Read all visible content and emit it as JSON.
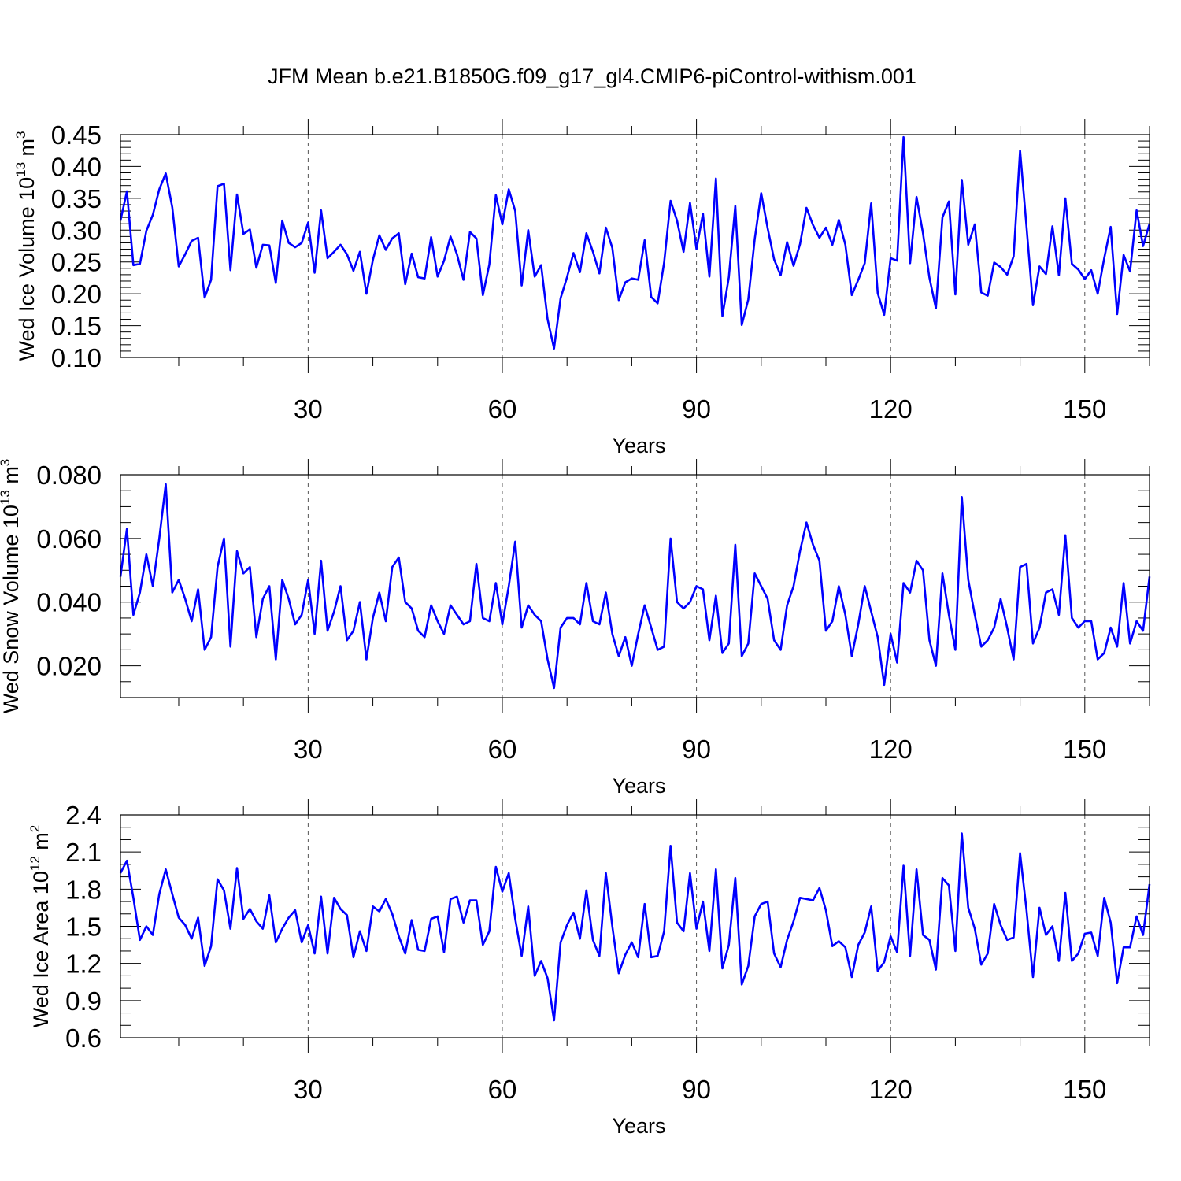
{
  "figure": {
    "title": "JFM Mean b.e21.B1850G.f09_g17_gl4.CMIP6-piControl-withism.001"
  },
  "chart_data": [
    {
      "type": "line",
      "ylabel": {
        "main": "Wed Ice Volume 10",
        "sup": "13",
        "unit": " m",
        "unit_sup": "3"
      },
      "xlabel": "Years",
      "xlim": [
        1,
        160
      ],
      "ylim": [
        0.1,
        0.45
      ],
      "yticks": [
        0.1,
        0.15,
        0.2,
        0.25,
        0.3,
        0.35,
        0.4,
        0.45
      ],
      "ytick_labels": [
        "0.10",
        "0.15",
        "0.20",
        "0.25",
        "0.30",
        "0.35",
        "0.40",
        "0.45"
      ],
      "yminor_step": 0.01,
      "xticks": [
        30,
        60,
        90,
        120,
        150
      ],
      "xtick_labels": [
        "30",
        "60",
        "90",
        "120",
        "150"
      ],
      "xminor_step": 10,
      "grid_x": true,
      "series": [
        {
          "name": "Wed Ice Volume",
          "color": "#0000ff",
          "values": [
            0.315,
            0.361,
            0.245,
            0.247,
            0.299,
            0.324,
            0.364,
            0.389,
            0.336,
            0.243,
            0.262,
            0.283,
            0.288,
            0.194,
            0.222,
            0.369,
            0.373,
            0.237,
            0.356,
            0.294,
            0.301,
            0.241,
            0.277,
            0.276,
            0.217,
            0.315,
            0.28,
            0.273,
            0.28,
            0.312,
            0.233,
            0.331,
            0.256,
            0.266,
            0.277,
            0.262,
            0.236,
            0.266,
            0.2,
            0.253,
            0.292,
            0.269,
            0.287,
            0.295,
            0.215,
            0.263,
            0.226,
            0.224,
            0.289,
            0.227,
            0.252,
            0.29,
            0.262,
            0.222,
            0.297,
            0.287,
            0.198,
            0.246,
            0.355,
            0.309,
            0.364,
            0.33,
            0.213,
            0.3,
            0.227,
            0.245,
            0.16,
            0.114,
            0.193,
            0.226,
            0.264,
            0.234,
            0.295,
            0.266,
            0.232,
            0.304,
            0.272,
            0.19,
            0.218,
            0.224,
            0.222,
            0.284,
            0.195,
            0.185,
            0.249,
            0.346,
            0.315,
            0.266,
            0.343,
            0.27,
            0.326,
            0.227,
            0.381,
            0.165,
            0.226,
            0.338,
            0.151,
            0.191,
            0.286,
            0.358,
            0.303,
            0.254,
            0.229,
            0.281,
            0.244,
            0.278,
            0.335,
            0.308,
            0.288,
            0.304,
            0.277,
            0.316,
            0.277,
            0.198,
            0.222,
            0.248,
            0.342,
            0.201,
            0.167,
            0.256,
            0.252,
            0.446,
            0.248,
            0.352,
            0.295,
            0.225,
            0.177,
            0.32,
            0.345,
            0.199,
            0.379,
            0.277,
            0.309,
            0.202,
            0.197,
            0.249,
            0.242,
            0.23,
            0.259,
            0.425,
            0.305,
            0.182,
            0.243,
            0.231,
            0.306,
            0.229,
            0.35,
            0.247,
            0.238,
            0.223,
            0.237,
            0.2,
            0.256,
            0.305,
            0.168,
            0.261,
            0.235,
            0.331,
            0.275,
            0.31
          ]
        }
      ]
    },
    {
      "type": "line",
      "ylabel": {
        "main": "Wed Snow Volume 10",
        "sup": "13",
        "unit": " m",
        "unit_sup": "3"
      },
      "xlabel": "Years",
      "xlim": [
        1,
        160
      ],
      "ylim": [
        0.01,
        0.08
      ],
      "yticks": [
        0.02,
        0.04,
        0.06,
        0.08
      ],
      "ytick_labels": [
        "0.020",
        "0.040",
        "0.060",
        "0.080"
      ],
      "yminor_step": 0.005,
      "xticks": [
        30,
        60,
        90,
        120,
        150
      ],
      "xtick_labels": [
        "30",
        "60",
        "90",
        "120",
        "150"
      ],
      "xminor_step": 10,
      "grid_x": true,
      "series": [
        {
          "name": "Wed Snow Volume",
          "color": "#0000ff",
          "values": [
            0.048,
            0.063,
            0.036,
            0.043,
            0.055,
            0.045,
            0.06,
            0.077,
            0.043,
            0.047,
            0.041,
            0.034,
            0.044,
            0.025,
            0.029,
            0.051,
            0.06,
            0.026,
            0.056,
            0.049,
            0.051,
            0.029,
            0.041,
            0.045,
            0.022,
            0.047,
            0.041,
            0.033,
            0.036,
            0.047,
            0.03,
            0.053,
            0.031,
            0.037,
            0.045,
            0.028,
            0.031,
            0.04,
            0.022,
            0.035,
            0.043,
            0.034,
            0.051,
            0.054,
            0.04,
            0.038,
            0.031,
            0.029,
            0.039,
            0.034,
            0.03,
            0.039,
            0.036,
            0.033,
            0.034,
            0.052,
            0.035,
            0.034,
            0.046,
            0.033,
            0.045,
            0.059,
            0.032,
            0.039,
            0.036,
            0.034,
            0.022,
            0.013,
            0.032,
            0.035,
            0.035,
            0.033,
            0.046,
            0.034,
            0.033,
            0.043,
            0.03,
            0.023,
            0.029,
            0.02,
            0.03,
            0.039,
            0.032,
            0.025,
            0.026,
            0.06,
            0.04,
            0.038,
            0.04,
            0.045,
            0.044,
            0.028,
            0.042,
            0.024,
            0.027,
            0.058,
            0.023,
            0.027,
            0.049,
            0.045,
            0.041,
            0.028,
            0.025,
            0.039,
            0.045,
            0.056,
            0.065,
            0.058,
            0.053,
            0.031,
            0.034,
            0.045,
            0.036,
            0.023,
            0.033,
            0.045,
            0.037,
            0.029,
            0.014,
            0.03,
            0.021,
            0.046,
            0.043,
            0.053,
            0.05,
            0.028,
            0.02,
            0.049,
            0.036,
            0.025,
            0.073,
            0.047,
            0.036,
            0.026,
            0.028,
            0.032,
            0.041,
            0.032,
            0.022,
            0.051,
            0.052,
            0.027,
            0.032,
            0.043,
            0.044,
            0.036,
            0.061,
            0.035,
            0.032,
            0.034,
            0.034,
            0.022,
            0.024,
            0.032,
            0.026,
            0.046,
            0.027,
            0.034,
            0.031,
            0.048
          ]
        }
      ]
    },
    {
      "type": "line",
      "ylabel": {
        "main": "Wed Ice Area 10",
        "sup": "12",
        "unit": " m",
        "unit_sup": "2"
      },
      "xlabel": "Years",
      "xlim": [
        1,
        160
      ],
      "ylim": [
        0.6,
        2.4
      ],
      "yticks": [
        0.6,
        0.9,
        1.2,
        1.5,
        1.8,
        2.1,
        2.4
      ],
      "ytick_labels": [
        "0.6",
        "0.9",
        "1.2",
        "1.5",
        "1.8",
        "2.1",
        "2.4"
      ],
      "yminor_step": 0.1,
      "xticks": [
        30,
        60,
        90,
        120,
        150
      ],
      "xtick_labels": [
        "30",
        "60",
        "90",
        "120",
        "150"
      ],
      "xminor_step": 10,
      "grid_x": true,
      "series": [
        {
          "name": "Wed Ice Area",
          "color": "#0000ff",
          "values": [
            1.93,
            2.03,
            1.73,
            1.39,
            1.5,
            1.43,
            1.76,
            1.96,
            1.76,
            1.57,
            1.51,
            1.4,
            1.57,
            1.18,
            1.34,
            1.88,
            1.79,
            1.48,
            1.97,
            1.56,
            1.64,
            1.54,
            1.48,
            1.75,
            1.37,
            1.48,
            1.57,
            1.63,
            1.37,
            1.51,
            1.28,
            1.74,
            1.28,
            1.73,
            1.64,
            1.59,
            1.25,
            1.46,
            1.3,
            1.66,
            1.62,
            1.72,
            1.6,
            1.42,
            1.28,
            1.55,
            1.31,
            1.3,
            1.56,
            1.58,
            1.29,
            1.72,
            1.74,
            1.53,
            1.71,
            1.71,
            1.35,
            1.46,
            1.98,
            1.78,
            1.93,
            1.56,
            1.26,
            1.66,
            1.1,
            1.22,
            1.08,
            0.74,
            1.37,
            1.51,
            1.61,
            1.4,
            1.79,
            1.39,
            1.26,
            1.93,
            1.5,
            1.12,
            1.27,
            1.37,
            1.25,
            1.68,
            1.25,
            1.26,
            1.46,
            2.15,
            1.53,
            1.46,
            1.93,
            1.48,
            1.7,
            1.3,
            1.96,
            1.16,
            1.35,
            1.89,
            1.03,
            1.18,
            1.58,
            1.68,
            1.7,
            1.28,
            1.17,
            1.39,
            1.54,
            1.73,
            1.72,
            1.71,
            1.81,
            1.63,
            1.34,
            1.38,
            1.33,
            1.09,
            1.35,
            1.45,
            1.66,
            1.14,
            1.21,
            1.42,
            1.29,
            1.99,
            1.26,
            1.96,
            1.43,
            1.39,
            1.15,
            1.89,
            1.83,
            1.3,
            2.25,
            1.65,
            1.48,
            1.19,
            1.28,
            1.68,
            1.51,
            1.39,
            1.41,
            2.09,
            1.63,
            1.09,
            1.65,
            1.43,
            1.5,
            1.22,
            1.77,
            1.22,
            1.28,
            1.44,
            1.45,
            1.26,
            1.73,
            1.53,
            1.04,
            1.33,
            1.33,
            1.58,
            1.43,
            1.84
          ]
        }
      ]
    }
  ]
}
